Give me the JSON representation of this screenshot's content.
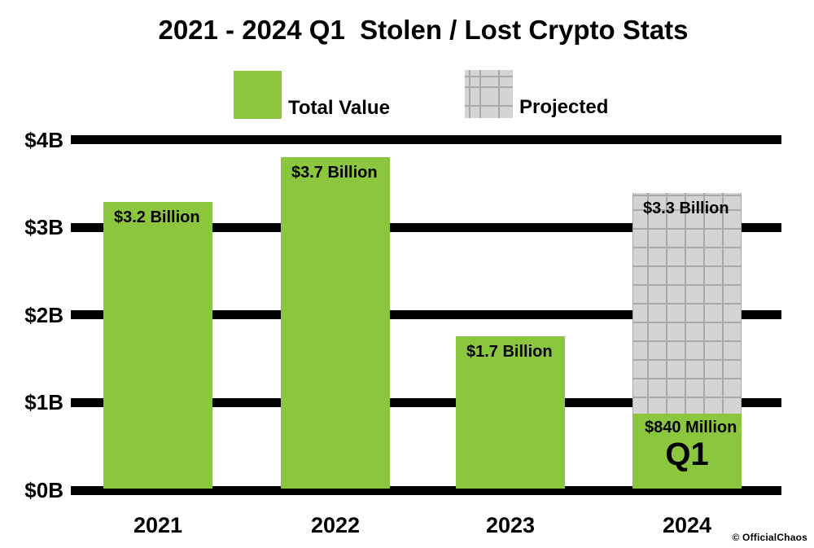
{
  "title": "2021 - 2024 Q1  Stolen / Lost Crypto Stats",
  "watermark": "© OfficialChaos",
  "colors": {
    "bar_green": "#8CC63F",
    "projected_fill": "#D4D4D4",
    "projected_grid_line": "#A9A9A9",
    "axis_black": "#000000",
    "background": "#FFFFFF"
  },
  "legend": {
    "items": [
      {
        "label": "Total Value",
        "swatch": "solid-green"
      },
      {
        "label": "Projected",
        "swatch": "gray-grid"
      }
    ]
  },
  "chart_data": {
    "type": "bar",
    "title": "2021 - 2024 Q1  Stolen / Lost Crypto Stats",
    "categories": [
      "2021",
      "2022",
      "2023",
      "2024"
    ],
    "series": [
      {
        "name": "Total Value",
        "values": [
          3.2,
          3.7,
          1.7,
          0.84
        ],
        "bar_labels": [
          "$3.2 Billion",
          "$3.7 Billion",
          "$1.7 Billion",
          "$840 Million"
        ]
      },
      {
        "name": "Projected",
        "values": [
          null,
          null,
          null,
          3.3
        ],
        "bar_labels": [
          null,
          null,
          null,
          "$3.3 Billion"
        ]
      }
    ],
    "yticks": [
      {
        "label": "$4B",
        "value": 4
      },
      {
        "label": "$3B",
        "value": 3
      },
      {
        "label": "$2B",
        "value": 2
      },
      {
        "label": "$1B",
        "value": 1
      },
      {
        "label": "$0B",
        "value": 0
      }
    ],
    "ylim": [
      0,
      4
    ],
    "units": "billions USD",
    "grid": "horizontal-black-bands",
    "legend_position": "top",
    "annotations": [
      {
        "text": "Q1",
        "target": "2024 Total Value bar"
      }
    ]
  }
}
